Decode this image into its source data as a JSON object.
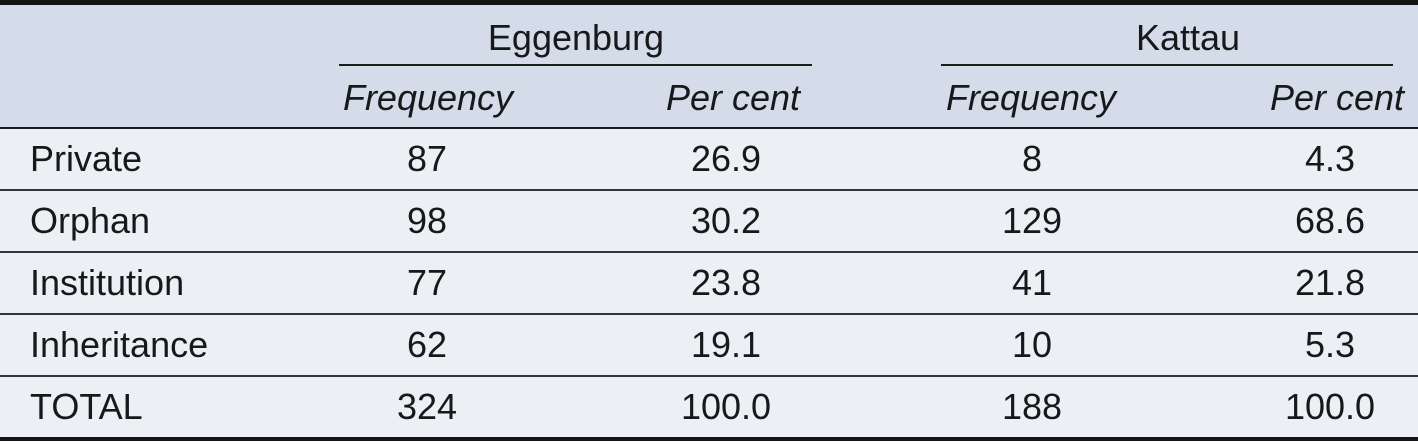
{
  "table": {
    "column_groups": [
      {
        "label": "Eggenburg"
      },
      {
        "label": "Kattau"
      }
    ],
    "sub_headers": [
      "Frequency",
      "Per cent",
      "Frequency",
      "Per cent"
    ],
    "rows": [
      {
        "label": "Private",
        "values": [
          "87",
          "26.9",
          "8",
          "4.3"
        ]
      },
      {
        "label": "Orphan",
        "values": [
          "98",
          "30.2",
          "129",
          "68.6"
        ]
      },
      {
        "label": "Institution",
        "values": [
          "77",
          "23.8",
          "41",
          "21.8"
        ]
      },
      {
        "label": "Inheritance",
        "values": [
          "62",
          "19.1",
          "10",
          "5.3"
        ]
      },
      {
        "label": "TOTAL",
        "values": [
          "324",
          "100.0",
          "188",
          "100.0"
        ]
      }
    ]
  },
  "colors": {
    "page_background": "#ffffff",
    "header_background": "#d4dcea",
    "row_background": "#edeff4",
    "border_black": "#141414",
    "header_line": "#191b1e",
    "row_line": "#31353a",
    "underline": "#1c1c1c",
    "text": "#17181a"
  },
  "chart_data": {
    "type": "table",
    "column_groups": [
      "Eggenburg",
      "Kattau"
    ],
    "columns": [
      "Eggenburg Frequency",
      "Eggenburg Per cent",
      "Kattau Frequency",
      "Kattau Per cent"
    ],
    "categories": [
      "Private",
      "Orphan",
      "Institution",
      "Inheritance",
      "TOTAL"
    ],
    "series": [
      {
        "name": "Eggenburg Frequency",
        "values": [
          87,
          98,
          77,
          62,
          324
        ]
      },
      {
        "name": "Eggenburg Per cent",
        "values": [
          26.9,
          30.2,
          23.8,
          19.1,
          100.0
        ]
      },
      {
        "name": "Kattau Frequency",
        "values": [
          8,
          129,
          41,
          10,
          188
        ]
      },
      {
        "name": "Kattau Per cent",
        "values": [
          4.3,
          68.6,
          21.8,
          5.3,
          100.0
        ]
      }
    ],
    "layout": {
      "header_rows": 2,
      "grid": "horizontal-rules-only",
      "totals_row": "TOTAL"
    }
  }
}
